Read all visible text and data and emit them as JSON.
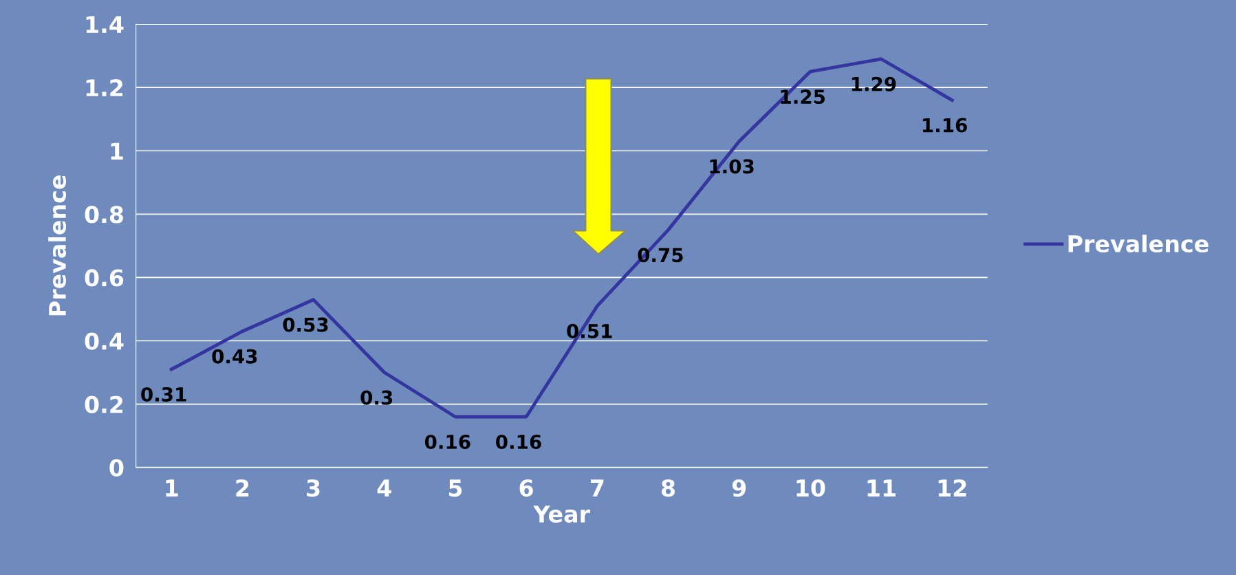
{
  "chart_data": {
    "type": "line",
    "xlabel": "Year",
    "ylabel": "Prevalence",
    "categories": [
      "1",
      "2",
      "3",
      "4",
      "5",
      "6",
      "7",
      "8",
      "9",
      "10",
      "11",
      "12"
    ],
    "series": [
      {
        "name": "Prevalence",
        "color": "#3535a0",
        "values": [
          0.31,
          0.43,
          0.53,
          0.3,
          0.16,
          0.16,
          0.51,
          0.75,
          1.03,
          1.25,
          1.29,
          1.16
        ]
      }
    ],
    "ylim": [
      0,
      1.4
    ],
    "yticks": [
      0,
      0.2,
      0.4,
      0.6,
      0.8,
      1,
      1.2,
      1.4
    ],
    "grid": "y",
    "legend": "right",
    "data_labels": true,
    "marker": "none",
    "line_style": "solid"
  }
}
